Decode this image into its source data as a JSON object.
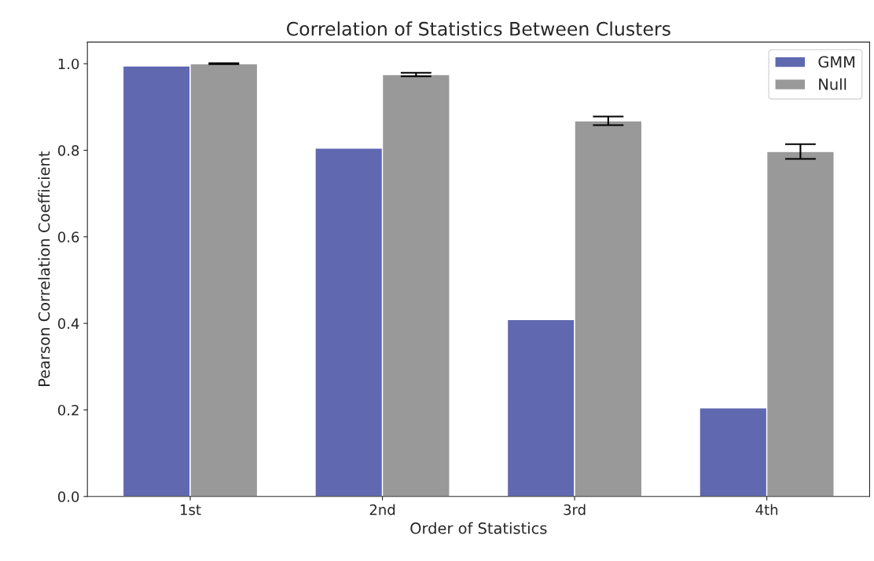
{
  "chart_data": {
    "type": "bar",
    "title": "Correlation of Statistics Between Clusters",
    "xlabel": "Order of Statistics",
    "ylabel": "Pearson Correlation Coefficient",
    "categories": [
      "1st",
      "2nd",
      "3rd",
      "4th"
    ],
    "series": [
      {
        "name": "GMM",
        "color": "#6068b0",
        "values": [
          0.995,
          0.805,
          0.409,
          0.205
        ]
      },
      {
        "name": "Null",
        "color": "#999999",
        "values": [
          1.0,
          0.975,
          0.868,
          0.797
        ],
        "errors": [
          0.001,
          0.004,
          0.01,
          0.017
        ]
      }
    ],
    "ylim": [
      0,
      1.05
    ],
    "yticks": [
      {
        "value": 0,
        "label": "0.0"
      },
      {
        "value": 0.2,
        "label": "0.2"
      },
      {
        "value": 0.4,
        "label": "0.4"
      },
      {
        "value": 0.6,
        "label": "0.6"
      },
      {
        "value": 0.8,
        "label": "0.8"
      },
      {
        "value": 1.0,
        "label": "1.0"
      }
    ],
    "grid": false,
    "legend": "top right"
  }
}
